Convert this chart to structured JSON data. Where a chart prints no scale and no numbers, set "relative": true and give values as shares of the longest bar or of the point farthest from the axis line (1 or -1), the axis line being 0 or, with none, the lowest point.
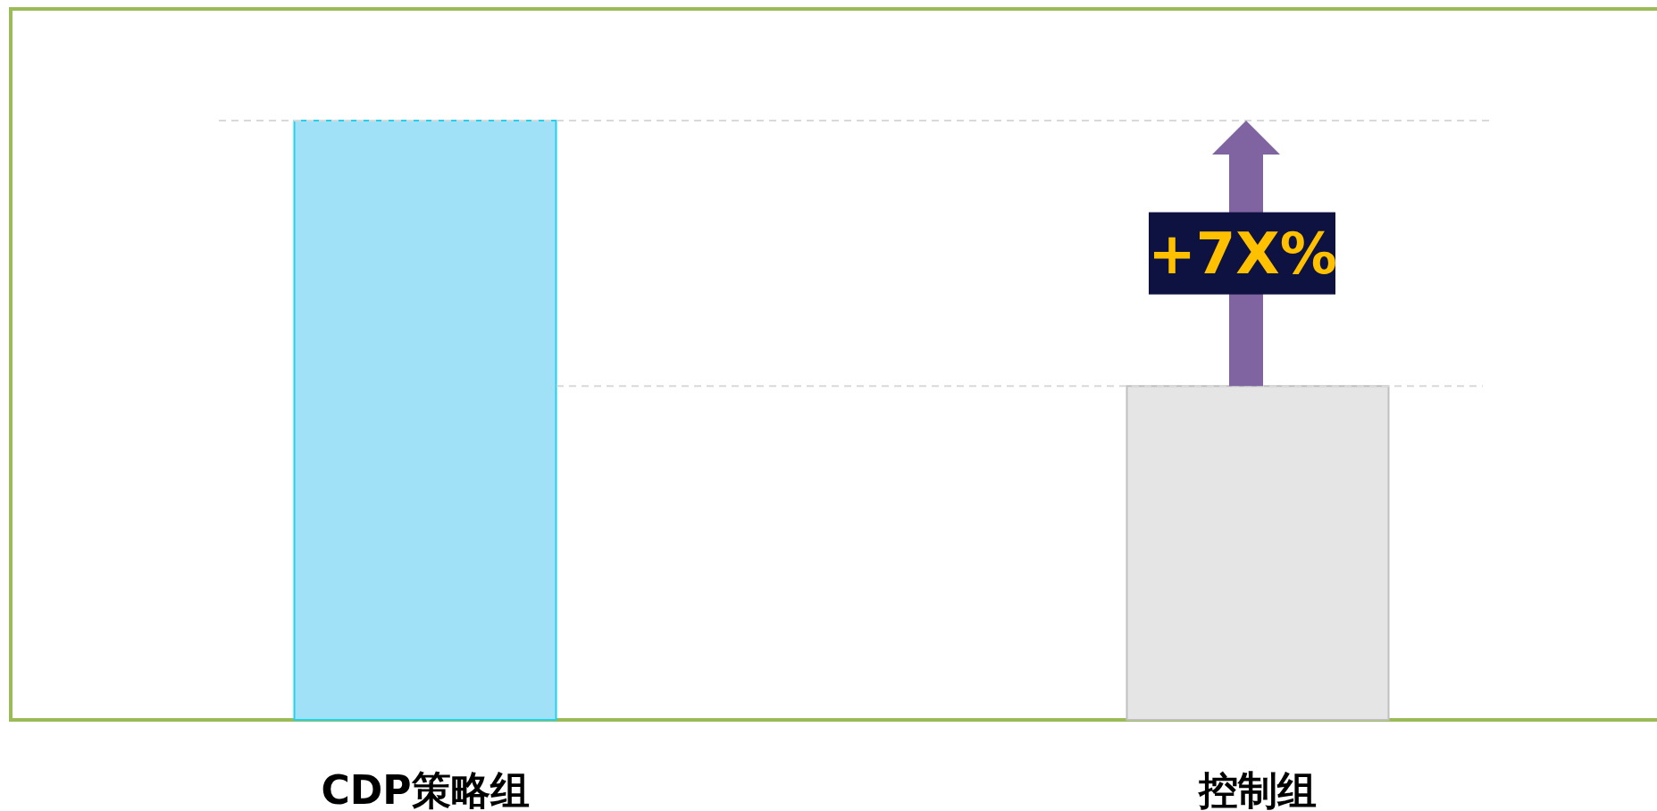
{
  "chart_data": {
    "type": "bar",
    "relative": true,
    "categories": [
      "CDP策略组",
      "控制组"
    ],
    "values": [
      1,
      0.557
    ],
    "colors": [
      "#a0e1f8",
      "#e5e5e5"
    ],
    "ref_lines": [
      {
        "axis": "y",
        "value": 1,
        "color": "#d9d9d9",
        "line_style": "dashed"
      },
      {
        "axis": "y",
        "value": 0.557,
        "color": "#d9d9d9",
        "line_style": "dashed"
      }
    ],
    "annotations": [
      {
        "text": "+7X%",
        "x": "控制组",
        "y": 1
      }
    ]
  }
}
